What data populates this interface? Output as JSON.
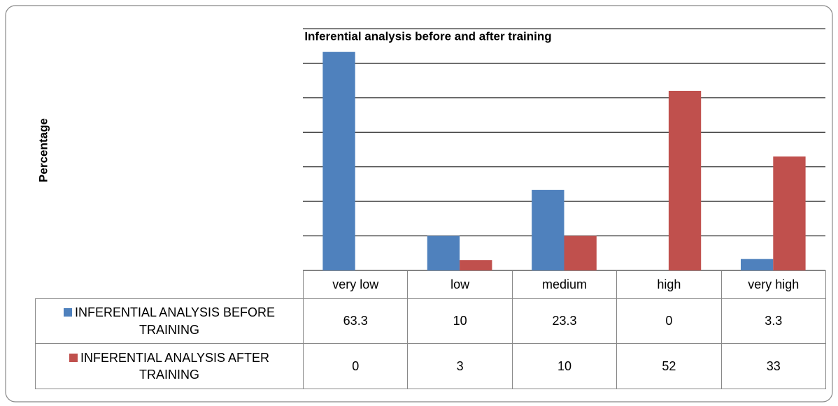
{
  "chart_data": {
    "type": "bar",
    "title": "Inferential analysis before and after training",
    "y_label": "Percentage",
    "categories": [
      "very low",
      "low",
      "medium",
      "high",
      "very high"
    ],
    "series": [
      {
        "name": "INFERENTIAL ANALYSIS BEFORE TRAINING",
        "color": "#4f81bd",
        "values": [
          63.3,
          10,
          23.3,
          0,
          3.3
        ]
      },
      {
        "name": "INFERENTIAL ANALYSIS AFTER TRAINING",
        "color": "#c0504d",
        "values": [
          0,
          3,
          10,
          52,
          33
        ]
      }
    ],
    "ylim": [
      0,
      70
    ],
    "yticks": [
      0,
      10,
      20,
      30,
      40,
      50,
      60,
      70
    ],
    "grid": true
  }
}
